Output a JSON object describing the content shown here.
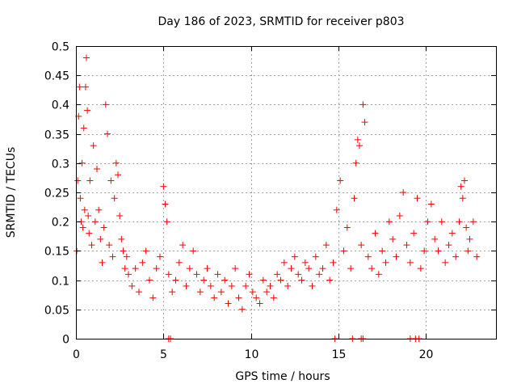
{
  "chart_data": {
    "type": "scatter",
    "title": "Day 186 of 2023, SRMTID for receiver p803",
    "xlabel": "GPS time / hours",
    "ylabel": "SRMTID / TECUs",
    "xlim": [
      0,
      24
    ],
    "ylim": [
      0,
      0.5
    ],
    "x_ticks": [
      0,
      5,
      10,
      15,
      20
    ],
    "y_ticks": [
      0,
      0.05,
      0.1,
      0.15,
      0.2,
      0.25,
      0.3,
      0.35,
      0.4,
      0.45,
      0.5
    ],
    "x_tick_labels": [
      "0",
      "5",
      "10",
      "15",
      "20"
    ],
    "y_tick_labels": [
      "0",
      "0.05",
      "0.1",
      "0.15",
      "0.2",
      "0.25",
      "0.3",
      "0.35",
      "0.4",
      "0.45",
      "0.5"
    ],
    "grid": true,
    "marker": "plus",
    "color": "#ff0000",
    "series": [
      {
        "name": "SRMTID",
        "x": [
          0.05,
          0.1,
          0.15,
          0.2,
          0.25,
          0.3,
          0.35,
          0.4,
          0.45,
          0.5,
          0.55,
          0.6,
          0.65,
          0.7,
          0.75,
          0.8,
          0.9,
          1.0,
          1.1,
          1.2,
          1.3,
          1.4,
          1.5,
          1.6,
          1.7,
          1.8,
          1.9,
          2.0,
          2.1,
          2.2,
          2.3,
          2.4,
          2.5,
          2.6,
          2.7,
          2.8,
          2.9,
          3.0,
          3.2,
          3.4,
          3.6,
          3.8,
          4.0,
          4.2,
          4.4,
          4.6,
          4.8,
          5.0,
          5.1,
          5.2,
          5.3,
          5.5,
          5.7,
          5.9,
          6.1,
          6.3,
          6.5,
          6.7,
          6.9,
          7.1,
          7.3,
          7.5,
          7.7,
          7.9,
          8.1,
          8.3,
          8.5,
          8.7,
          8.9,
          9.1,
          9.3,
          9.5,
          9.7,
          9.9,
          10.1,
          10.3,
          10.5,
          10.7,
          10.9,
          11.1,
          11.3,
          11.5,
          11.7,
          11.9,
          12.1,
          12.3,
          12.5,
          12.7,
          12.9,
          13.1,
          13.3,
          13.5,
          13.7,
          13.9,
          14.1,
          14.3,
          14.5,
          14.7,
          14.9,
          15.1,
          15.3,
          15.5,
          15.7,
          15.9,
          16.0,
          16.1,
          16.2,
          16.3,
          16.4,
          16.5,
          16.7,
          16.9,
          17.1,
          17.3,
          17.5,
          17.7,
          17.9,
          18.1,
          18.3,
          18.5,
          18.7,
          18.9,
          19.1,
          19.3,
          19.5,
          19.7,
          19.9,
          20.1,
          20.3,
          20.5,
          20.7,
          20.9,
          21.1,
          21.3,
          21.5,
          21.7,
          21.9,
          22.0,
          22.1,
          22.2,
          22.3,
          22.4,
          22.5,
          22.7,
          22.9,
          5.3,
          5.4,
          14.8,
          15.8,
          16.3,
          16.4,
          19.1,
          19.4,
          19.6
        ],
        "y": [
          0.15,
          0.27,
          0.38,
          0.43,
          0.24,
          0.2,
          0.3,
          0.19,
          0.36,
          0.22,
          0.43,
          0.48,
          0.39,
          0.21,
          0.18,
          0.27,
          0.16,
          0.33,
          0.2,
          0.29,
          0.22,
          0.17,
          0.13,
          0.19,
          0.4,
          0.35,
          0.16,
          0.27,
          0.14,
          0.24,
          0.3,
          0.28,
          0.21,
          0.17,
          0.15,
          0.12,
          0.14,
          0.11,
          0.09,
          0.12,
          0.08,
          0.13,
          0.15,
          0.1,
          0.07,
          0.12,
          0.14,
          0.26,
          0.23,
          0.2,
          0.11,
          0.08,
          0.1,
          0.13,
          0.16,
          0.09,
          0.12,
          0.15,
          0.11,
          0.08,
          0.1,
          0.12,
          0.09,
          0.07,
          0.11,
          0.08,
          0.1,
          0.06,
          0.09,
          0.12,
          0.07,
          0.05,
          0.09,
          0.11,
          0.08,
          0.07,
          0.06,
          0.1,
          0.08,
          0.09,
          0.07,
          0.11,
          0.1,
          0.13,
          0.09,
          0.12,
          0.14,
          0.11,
          0.1,
          0.13,
          0.12,
          0.09,
          0.14,
          0.11,
          0.12,
          0.16,
          0.1,
          0.13,
          0.22,
          0.27,
          0.15,
          0.19,
          0.12,
          0.24,
          0.3,
          0.34,
          0.33,
          0.16,
          0.4,
          0.37,
          0.14,
          0.12,
          0.18,
          0.11,
          0.15,
          0.13,
          0.2,
          0.17,
          0.14,
          0.21,
          0.25,
          0.16,
          0.13,
          0.18,
          0.24,
          0.12,
          0.15,
          0.2,
          0.23,
          0.17,
          0.15,
          0.2,
          0.13,
          0.16,
          0.18,
          0.14,
          0.2,
          0.26,
          0.24,
          0.27,
          0.19,
          0.15,
          0.17,
          0.2,
          0.14,
          0.0,
          0.0,
          0.0,
          0.0,
          0.0,
          0.0,
          0.0,
          0.0,
          0.0
        ]
      }
    ]
  }
}
